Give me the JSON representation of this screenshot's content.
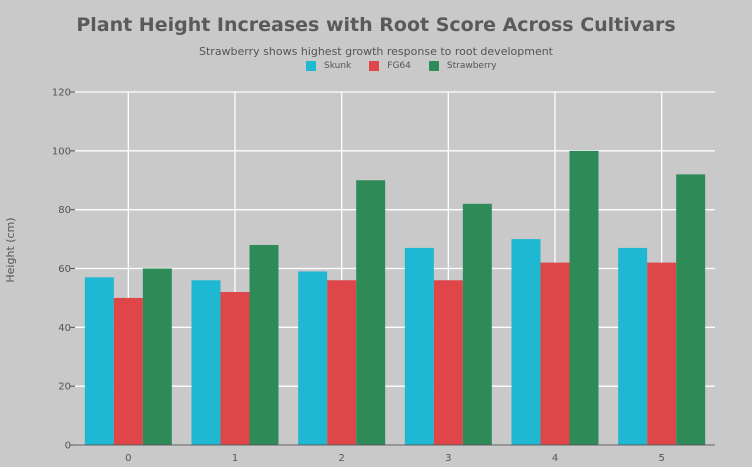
{
  "chart_data": {
    "type": "bar",
    "title": "Plant Height Increases with Root Score Across Cultivars",
    "subtitle": "Strawberry shows highest growth response to root development",
    "xlabel": "",
    "ylabel": "Height (cm)",
    "categories": [
      "0",
      "1",
      "2",
      "3",
      "4",
      "5"
    ],
    "ylim": [
      0,
      120
    ],
    "yticks": [
      "0",
      "20",
      "40",
      "60",
      "80",
      "100",
      "120"
    ],
    "grid": true,
    "legend_position": "top-center",
    "series": [
      {
        "name": "Skunk",
        "color": "#1fb8d3",
        "values": [
          57,
          56,
          59,
          67,
          70,
          67
        ]
      },
      {
        "name": "FG64",
        "color": "#de4649",
        "values": [
          50,
          52,
          56,
          56,
          62,
          62
        ]
      },
      {
        "name": "Strawberry",
        "color": "#2e8b57",
        "values": [
          60,
          68,
          90,
          82,
          100,
          92
        ]
      }
    ]
  }
}
